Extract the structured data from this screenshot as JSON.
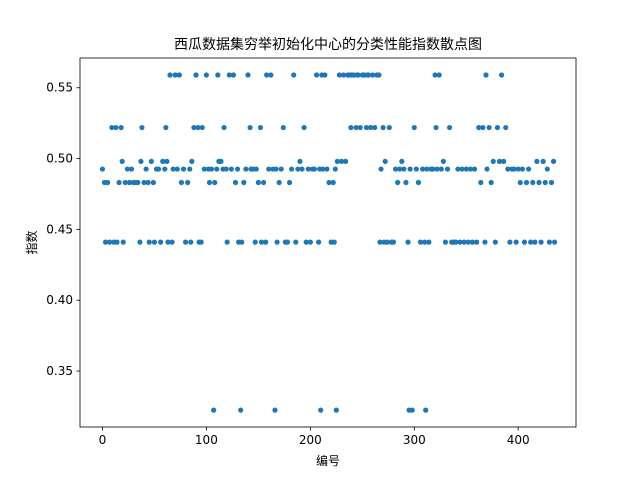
{
  "chart_data": {
    "type": "scatter",
    "title": "西瓜数据集穷举初始化中心的分类性能指数散点图",
    "xlabel": "编号",
    "ylabel": "指数",
    "xlim": [
      -21.6,
      455.6
    ],
    "ylim": [
      0.3105,
      0.571
    ],
    "xticks": [
      0,
      100,
      200,
      300,
      400
    ],
    "yticks": [
      0.35,
      0.4,
      0.45,
      0.5,
      0.55
    ],
    "tick_labels_x": [
      "0",
      "100",
      "200",
      "300",
      "400"
    ],
    "tick_labels_y": [
      "0.35",
      "0.40",
      "0.45",
      "0.50",
      "0.55"
    ],
    "grid": false,
    "color": "#1f77b4",
    "points": [
      [
        0,
        0.4926
      ],
      [
        2,
        0.4831
      ],
      [
        3,
        0.441
      ],
      [
        5,
        0.4831
      ],
      [
        7,
        0.441
      ],
      [
        9,
        0.5219
      ],
      [
        11,
        0.441
      ],
      [
        13,
        0.5219
      ],
      [
        14,
        0.441
      ],
      [
        16,
        0.4831
      ],
      [
        18,
        0.5219
      ],
      [
        19,
        0.498
      ],
      [
        20,
        0.441
      ],
      [
        22,
        0.4831
      ],
      [
        24,
        0.4926
      ],
      [
        26,
        0.4831
      ],
      [
        28,
        0.4926
      ],
      [
        30,
        0.4831
      ],
      [
        32,
        0.4831
      ],
      [
        34,
        0.4831
      ],
      [
        36,
        0.441
      ],
      [
        37,
        0.498
      ],
      [
        38,
        0.5219
      ],
      [
        40,
        0.4831
      ],
      [
        42,
        0.4926
      ],
      [
        44,
        0.4831
      ],
      [
        45,
        0.441
      ],
      [
        47,
        0.498
      ],
      [
        49,
        0.4831
      ],
      [
        50,
        0.441
      ],
      [
        52,
        0.4926
      ],
      [
        54,
        0.4926
      ],
      [
        56,
        0.441
      ],
      [
        58,
        0.498
      ],
      [
        60,
        0.4926
      ],
      [
        61,
        0.5219
      ],
      [
        62,
        0.498
      ],
      [
        63,
        0.441
      ],
      [
        65,
        0.559
      ],
      [
        67,
        0.441
      ],
      [
        68,
        0.4926
      ],
      [
        70,
        0.559
      ],
      [
        72,
        0.4926
      ],
      [
        74,
        0.559
      ],
      [
        76,
        0.4831
      ],
      [
        78,
        0.4926
      ],
      [
        80,
        0.441
      ],
      [
        82,
        0.4831
      ],
      [
        84,
        0.4926
      ],
      [
        85,
        0.441
      ],
      [
        86,
        0.498
      ],
      [
        88,
        0.5219
      ],
      [
        90,
        0.559
      ],
      [
        92,
        0.5219
      ],
      [
        93,
        0.441
      ],
      [
        95,
        0.441
      ],
      [
        96,
        0.5219
      ],
      [
        98,
        0.4926
      ],
      [
        100,
        0.559
      ],
      [
        102,
        0.4926
      ],
      [
        103,
        0.4831
      ],
      [
        105,
        0.4926
      ],
      [
        107,
        0.3224
      ],
      [
        108,
        0.4831
      ],
      [
        110,
        0.4926
      ],
      [
        111,
        0.559
      ],
      [
        112,
        0.498
      ],
      [
        114,
        0.498
      ],
      [
        116,
        0.4926
      ],
      [
        117,
        0.5219
      ],
      [
        119,
        0.4926
      ],
      [
        120,
        0.441
      ],
      [
        122,
        0.559
      ],
      [
        124,
        0.4926
      ],
      [
        126,
        0.559
      ],
      [
        128,
        0.4831
      ],
      [
        130,
        0.4926
      ],
      [
        131,
        0.441
      ],
      [
        133,
        0.3224
      ],
      [
        134,
        0.441
      ],
      [
        136,
        0.4831
      ],
      [
        138,
        0.4926
      ],
      [
        140,
        0.559
      ],
      [
        142,
        0.5219
      ],
      [
        143,
        0.4926
      ],
      [
        145,
        0.4926
      ],
      [
        147,
        0.441
      ],
      [
        148,
        0.4926
      ],
      [
        150,
        0.4831
      ],
      [
        152,
        0.5219
      ],
      [
        153,
        0.441
      ],
      [
        155,
        0.4831
      ],
      [
        157,
        0.441
      ],
      [
        158,
        0.559
      ],
      [
        160,
        0.4926
      ],
      [
        162,
        0.559
      ],
      [
        164,
        0.4926
      ],
      [
        166,
        0.3224
      ],
      [
        167,
        0.4926
      ],
      [
        168,
        0.441
      ],
      [
        170,
        0.4831
      ],
      [
        172,
        0.4926
      ],
      [
        174,
        0.5219
      ],
      [
        176,
        0.441
      ],
      [
        178,
        0.441
      ],
      [
        180,
        0.4831
      ],
      [
        182,
        0.4926
      ],
      [
        184,
        0.559
      ],
      [
        186,
        0.441
      ],
      [
        188,
        0.4926
      ],
      [
        190,
        0.498
      ],
      [
        192,
        0.4926
      ],
      [
        194,
        0.5219
      ],
      [
        196,
        0.441
      ],
      [
        198,
        0.4926
      ],
      [
        200,
        0.441
      ],
      [
        202,
        0.4926
      ],
      [
        204,
        0.4926
      ],
      [
        206,
        0.559
      ],
      [
        208,
        0.441
      ],
      [
        209,
        0.4926
      ],
      [
        210,
        0.3224
      ],
      [
        211,
        0.559
      ],
      [
        212,
        0.4926
      ],
      [
        214,
        0.559
      ],
      [
        216,
        0.4926
      ],
      [
        218,
        0.4831
      ],
      [
        220,
        0.441
      ],
      [
        222,
        0.4831
      ],
      [
        223,
        0.441
      ],
      [
        224,
        0.4926
      ],
      [
        225,
        0.3224
      ],
      [
        226,
        0.498
      ],
      [
        228,
        0.559
      ],
      [
        230,
        0.498
      ],
      [
        232,
        0.559
      ],
      [
        234,
        0.498
      ],
      [
        236,
        0.559
      ],
      [
        238,
        0.559
      ],
      [
        239,
        0.5219
      ],
      [
        240,
        0.559
      ],
      [
        242,
        0.559
      ],
      [
        244,
        0.5219
      ],
      [
        245,
        0.559
      ],
      [
        246,
        0.559
      ],
      [
        248,
        0.5219
      ],
      [
        250,
        0.559
      ],
      [
        252,
        0.559
      ],
      [
        254,
        0.5219
      ],
      [
        255,
        0.559
      ],
      [
        256,
        0.559
      ],
      [
        258,
        0.5219
      ],
      [
        260,
        0.559
      ],
      [
        262,
        0.5219
      ],
      [
        264,
        0.559
      ],
      [
        266,
        0.559
      ],
      [
        267,
        0.441
      ],
      [
        268,
        0.4926
      ],
      [
        270,
        0.5219
      ],
      [
        271,
        0.441
      ],
      [
        272,
        0.498
      ],
      [
        274,
        0.441
      ],
      [
        276,
        0.5219
      ],
      [
        278,
        0.441
      ],
      [
        280,
        0.441
      ],
      [
        282,
        0.4926
      ],
      [
        284,
        0.4831
      ],
      [
        286,
        0.4926
      ],
      [
        288,
        0.498
      ],
      [
        290,
        0.4926
      ],
      [
        292,
        0.4831
      ],
      [
        294,
        0.441
      ],
      [
        295,
        0.3224
      ],
      [
        296,
        0.4926
      ],
      [
        298,
        0.3224
      ],
      [
        300,
        0.5219
      ],
      [
        302,
        0.4926
      ],
      [
        304,
        0.4831
      ],
      [
        306,
        0.441
      ],
      [
        308,
        0.4926
      ],
      [
        310,
        0.441
      ],
      [
        311,
        0.3224
      ],
      [
        312,
        0.4926
      ],
      [
        314,
        0.441
      ],
      [
        316,
        0.4926
      ],
      [
        318,
        0.4926
      ],
      [
        320,
        0.559
      ],
      [
        321,
        0.5219
      ],
      [
        322,
        0.4926
      ],
      [
        324,
        0.559
      ],
      [
        326,
        0.4926
      ],
      [
        328,
        0.498
      ],
      [
        330,
        0.441
      ],
      [
        332,
        0.4926
      ],
      [
        334,
        0.5219
      ],
      [
        336,
        0.441
      ],
      [
        338,
        0.441
      ],
      [
        340,
        0.441
      ],
      [
        342,
        0.4926
      ],
      [
        344,
        0.441
      ],
      [
        346,
        0.4926
      ],
      [
        348,
        0.441
      ],
      [
        350,
        0.4926
      ],
      [
        352,
        0.441
      ],
      [
        354,
        0.4926
      ],
      [
        356,
        0.441
      ],
      [
        358,
        0.4926
      ],
      [
        360,
        0.441
      ],
      [
        362,
        0.5219
      ],
      [
        364,
        0.4831
      ],
      [
        366,
        0.5219
      ],
      [
        368,
        0.441
      ],
      [
        369,
        0.559
      ],
      [
        370,
        0.4926
      ],
      [
        372,
        0.5219
      ],
      [
        374,
        0.4831
      ],
      [
        376,
        0.498
      ],
      [
        378,
        0.441
      ],
      [
        380,
        0.5219
      ],
      [
        382,
        0.498
      ],
      [
        384,
        0.559
      ],
      [
        386,
        0.498
      ],
      [
        388,
        0.5219
      ],
      [
        390,
        0.4926
      ],
      [
        392,
        0.441
      ],
      [
        394,
        0.4926
      ],
      [
        396,
        0.4926
      ],
      [
        398,
        0.441
      ],
      [
        400,
        0.4926
      ],
      [
        402,
        0.4831
      ],
      [
        404,
        0.4926
      ],
      [
        406,
        0.441
      ],
      [
        408,
        0.4831
      ],
      [
        410,
        0.4926
      ],
      [
        412,
        0.441
      ],
      [
        414,
        0.4831
      ],
      [
        416,
        0.441
      ],
      [
        418,
        0.498
      ],
      [
        420,
        0.4831
      ],
      [
        422,
        0.441
      ],
      [
        424,
        0.498
      ],
      [
        426,
        0.4831
      ],
      [
        428,
        0.4926
      ],
      [
        430,
        0.441
      ],
      [
        432,
        0.4831
      ],
      [
        434,
        0.498
      ],
      [
        435,
        0.441
      ]
    ]
  }
}
